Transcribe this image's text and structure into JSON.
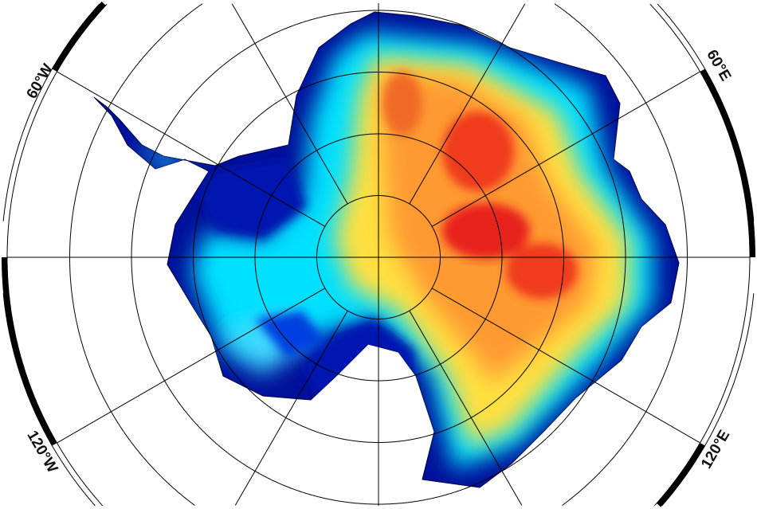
{
  "map": {
    "projection": "south polar stereographic",
    "grid_meridian_step_deg": 30,
    "frame_segment_deg": 30,
    "labels": [
      {
        "text": "60°W",
        "lon": -60
      },
      {
        "text": "60°E",
        "lon": 60
      },
      {
        "text": "120°W",
        "lon": -120
      },
      {
        "text": "120°E",
        "lon": 120
      }
    ],
    "colormap": [
      "#00008f",
      "#0030ff",
      "#00e5ff",
      "#c8ff8a",
      "#ffe040",
      "#ff8a30",
      "#e8201a"
    ],
    "colors": {
      "ocean": "#ffffff",
      "grid": "#000000",
      "frame": "#000000"
    }
  }
}
